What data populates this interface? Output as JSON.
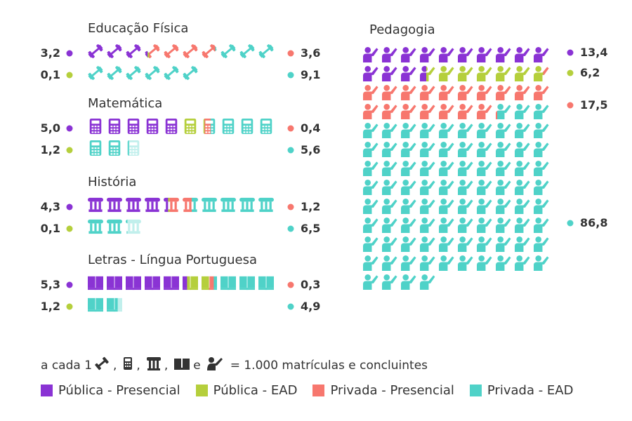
{
  "colors": {
    "publica_presencial": "#8a33d4",
    "publica_ead": "#b5cf3c",
    "privada_presencial": "#f7776e",
    "privada_ead": "#4fd2c8"
  },
  "chart_data": {
    "type": "pictogram",
    "unit_label": "= 1.000 matrículas e concluintes",
    "unit_prefix": "a cada 1",
    "icon_names": [
      "dumbbell-icon",
      "calculator-icon",
      "column-icon",
      "book-icon",
      "teacher-icon"
    ],
    "series": [
      {
        "key": "publica_presencial",
        "name": "Pública - Presencial"
      },
      {
        "key": "publica_ead",
        "name": "Pública - EAD"
      },
      {
        "key": "privada_presencial",
        "name": "Privada - Presencial"
      },
      {
        "key": "privada_ead",
        "name": "Privada - EAD"
      }
    ],
    "courses": [
      {
        "title": "Educação Física",
        "icon": "dumbbell-icon",
        "values": {
          "publica_presencial": 3.2,
          "publica_ead": 0.1,
          "privada_presencial": 3.6,
          "privada_ead": 9.1
        },
        "labels": {
          "publica_presencial": "3,2",
          "publica_ead": "0,1",
          "privada_presencial": "3,6",
          "privada_ead": "9,1"
        }
      },
      {
        "title": "Matemática",
        "icon": "calculator-icon",
        "values": {
          "publica_presencial": 5.0,
          "publica_ead": 1.2,
          "privada_presencial": 0.4,
          "privada_ead": 5.6
        },
        "labels": {
          "publica_presencial": "5,0",
          "publica_ead": "1,2",
          "privada_presencial": "0,4",
          "privada_ead": "5,6"
        }
      },
      {
        "title": "História",
        "icon": "column-icon",
        "values": {
          "publica_presencial": 4.3,
          "publica_ead": 0.1,
          "privada_presencial": 1.2,
          "privada_ead": 6.5
        },
        "labels": {
          "publica_presencial": "4,3",
          "publica_ead": "0,1",
          "privada_presencial": "1,2",
          "privada_ead": "6,5"
        }
      },
      {
        "title": "Letras - Língua Portuguesa",
        "icon": "book-icon",
        "values": {
          "publica_presencial": 5.3,
          "publica_ead": 1.2,
          "privada_presencial": 0.3,
          "privada_ead": 4.9
        },
        "labels": {
          "publica_presencial": "5,3",
          "publica_ead": "1,2",
          "privada_presencial": "0,3",
          "privada_ead": "4,9"
        }
      },
      {
        "title": "Pedagogia",
        "icon": "teacher-icon",
        "values": {
          "publica_presencial": 13.4,
          "publica_ead": 6.2,
          "privada_presencial": 17.5,
          "privada_ead": 86.8
        },
        "labels": {
          "publica_presencial": "13,4",
          "publica_ead": "6,2",
          "privada_presencial": "17,5",
          "privada_ead": "86,8"
        }
      }
    ]
  }
}
